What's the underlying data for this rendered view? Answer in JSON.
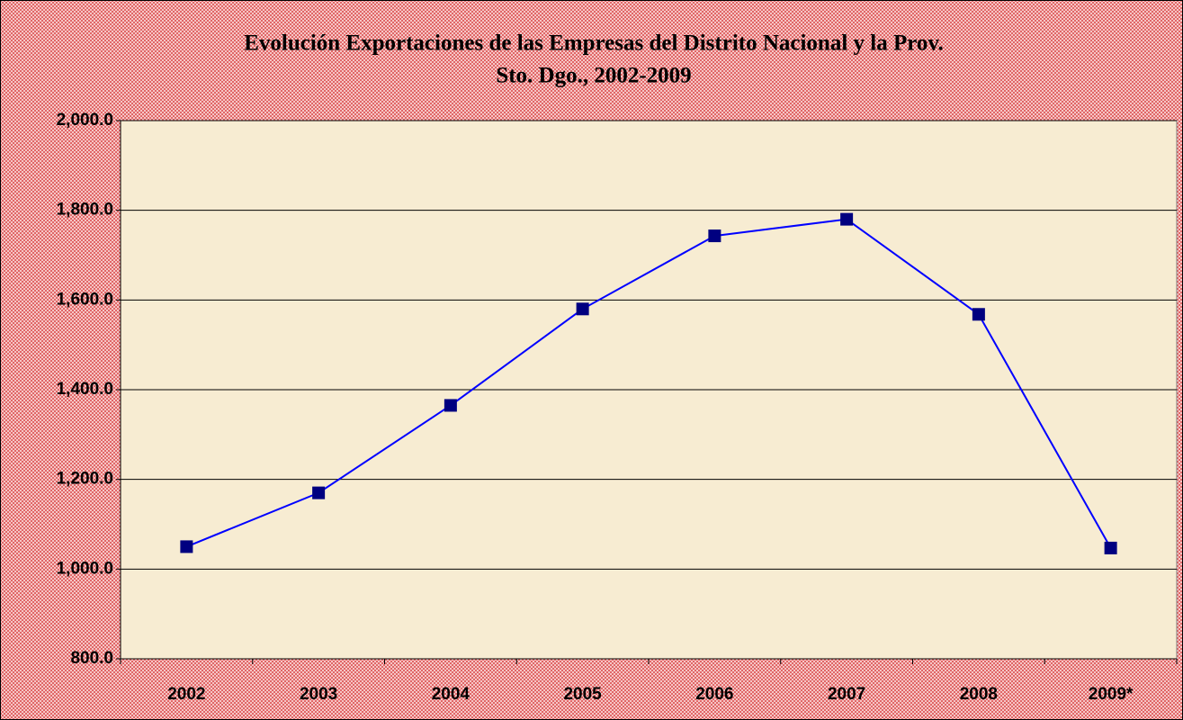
{
  "chart_data": {
    "type": "line",
    "title": [
      "Evolución Exportaciones de las Empresas del  Distrito Nacional y  la Prov.",
      "Sto. Dgo., 2002-2009"
    ],
    "categories": [
      "2002",
      "2003",
      "2004",
      "2005",
      "2006",
      "2007",
      "2008",
      "2009*"
    ],
    "values": [
      1050,
      1170,
      1365,
      1580,
      1743,
      1780,
      1568,
      1047
    ],
    "color": "#0000ff",
    "marker_color": "#000080",
    "ylim": [
      800,
      2000
    ],
    "yticks": [
      {
        "value": 800,
        "label": "800.0"
      },
      {
        "value": 1000,
        "label": "1,000.0"
      },
      {
        "value": 1200,
        "label": "1,200.0"
      },
      {
        "value": 1400,
        "label": "1,400.0"
      },
      {
        "value": 1600,
        "label": "1,600.0"
      },
      {
        "value": 1800,
        "label": "1,800.0"
      },
      {
        "value": 2000,
        "label": "2,000.0"
      }
    ],
    "grid": true
  }
}
